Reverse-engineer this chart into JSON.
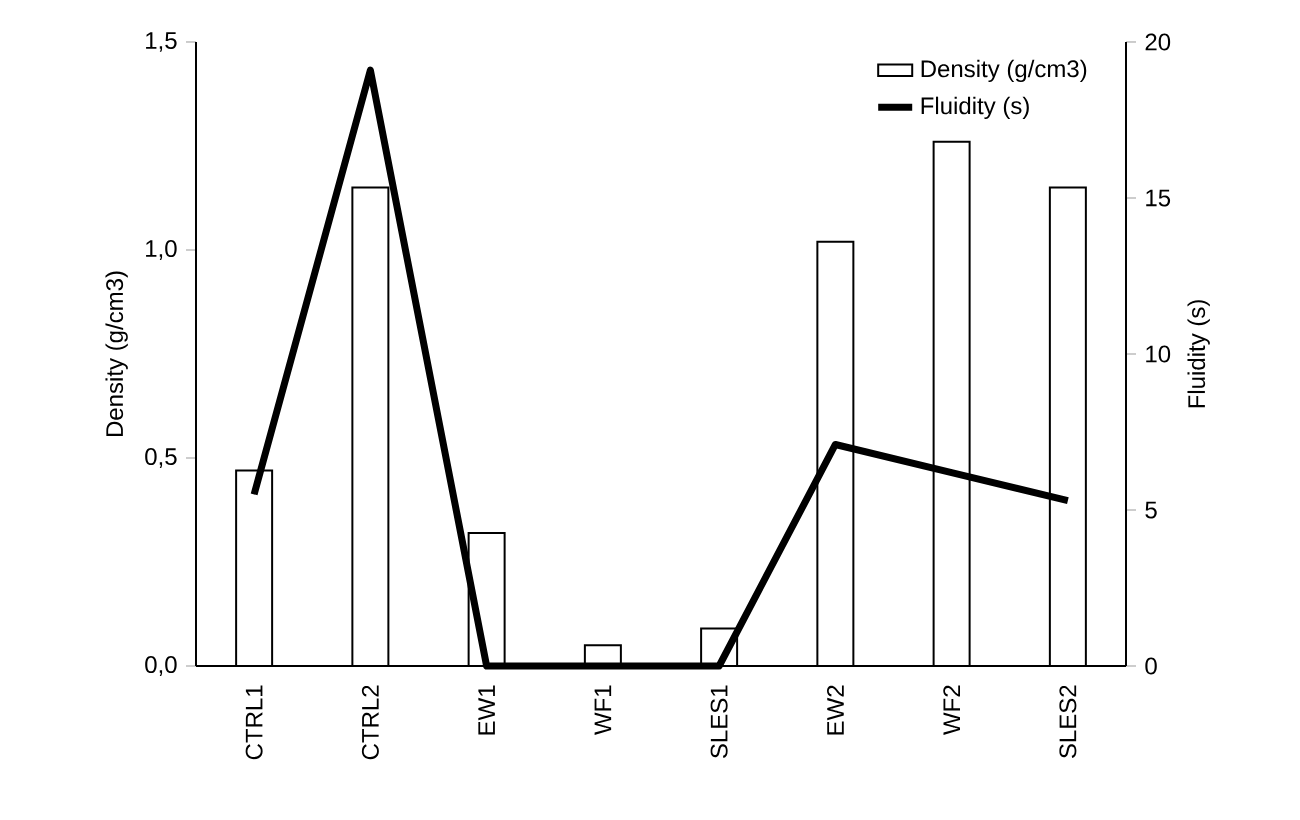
{
  "chart_data": {
    "type": "bar",
    "categories": [
      "CTRL1",
      "CTRL2",
      "EW1",
      "WF1",
      "SLES1",
      "EW2",
      "WF2",
      "SLES2"
    ],
    "ylabel": "Density (g/cm3)",
    "y2label": "Fluidity (s)",
    "ylim": [
      0,
      1.5
    ],
    "yticks": [
      {
        "value": 0,
        "label": "0,0"
      },
      {
        "value": 0.5,
        "label": "0,5"
      },
      {
        "value": 1,
        "label": "1,0"
      },
      {
        "value": 1.5,
        "label": "1,5"
      }
    ],
    "y2lim": [
      0,
      20
    ],
    "y2ticks": [
      0,
      5,
      10,
      15,
      20
    ],
    "legend": "top right",
    "grid": false,
    "series": [
      {
        "name": "Density  (g/cm3)",
        "type": "bar",
        "color": "#ffffff",
        "values": [
          0.47,
          1.15,
          0.32,
          0.05,
          0.09,
          1.02,
          1.26,
          1.15
        ]
      },
      {
        "name": "Fluidity (s)",
        "type": "line",
        "axis": "y2",
        "color": "#000000",
        "values": [
          5.5,
          19.1,
          0,
          0,
          0,
          7.1,
          6.2,
          5.3
        ]
      }
    ]
  }
}
